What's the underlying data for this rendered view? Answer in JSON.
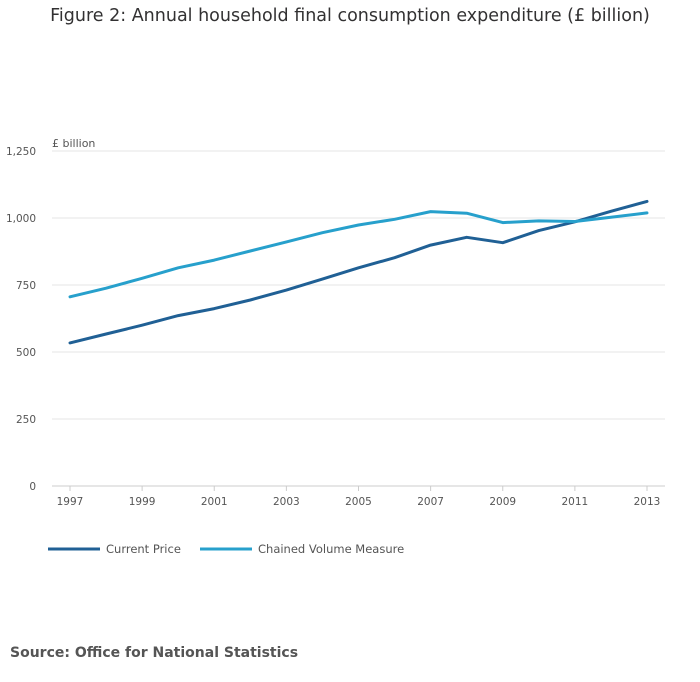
{
  "chart_data": {
    "type": "line",
    "title": "Figure 2: Annual household final consumption expenditure (£ billion)",
    "ylabel": "£ billion",
    "xlabel": "",
    "x": [
      1997,
      1998,
      1999,
      2000,
      2001,
      2002,
      2003,
      2004,
      2005,
      2006,
      2007,
      2008,
      2009,
      2010,
      2011,
      2012,
      2013
    ],
    "x_ticks": [
      "1997",
      "1999",
      "2001",
      "2003",
      "2005",
      "2007",
      "2009",
      "2011",
      "2013"
    ],
    "y_ticks": [
      "0",
      "250",
      "500",
      "750",
      "1,000",
      "1,250"
    ],
    "y_tick_values": [
      0,
      250,
      500,
      750,
      1000,
      1250
    ],
    "ylim": [
      0,
      1250
    ],
    "xlim": [
      1997,
      2013
    ],
    "grid": true,
    "legend_position": "bottom-left",
    "series": [
      {
        "name": "Current Price",
        "color": "#206095",
        "values": [
          534,
          567,
          600,
          636,
          662,
          694,
          731,
          772,
          814,
          852,
          899,
          928,
          908,
          953,
          986,
          1025,
          1062
        ]
      },
      {
        "name": "Chained Volume Measure",
        "color": "#27a0cc",
        "values": [
          706,
          738,
          775,
          814,
          843,
          877,
          911,
          945,
          974,
          995,
          1024,
          1018,
          983,
          989,
          987,
          1003,
          1019
        ]
      }
    ]
  },
  "source": "Source: Office for National Statistics"
}
